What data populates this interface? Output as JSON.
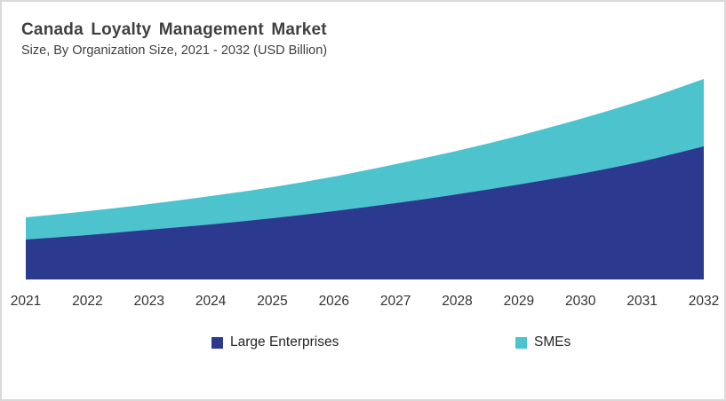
{
  "chart_data": {
    "type": "area",
    "stacked": true,
    "title": "Canada Loyalty Management Market",
    "subtitle": "Size, By Organization Size, 2021 - 2032 (USD Billion)",
    "x": [
      2021,
      2022,
      2023,
      2024,
      2025,
      2026,
      2027,
      2028,
      2029,
      2030,
      2031,
      2032
    ],
    "series": [
      {
        "name": "Large Enterprises",
        "color": "#2b3a8f",
        "values": [
          0.45,
          0.5,
          0.56,
          0.62,
          0.69,
          0.77,
          0.86,
          0.96,
          1.07,
          1.19,
          1.33,
          1.5
        ]
      },
      {
        "name": "SMEs",
        "color": "#4dc3cd",
        "values": [
          0.25,
          0.27,
          0.29,
          0.32,
          0.35,
          0.39,
          0.44,
          0.49,
          0.55,
          0.62,
          0.69,
          0.76
        ]
      }
    ],
    "xlabel": "",
    "ylabel": "",
    "ylim": [
      0,
      2.43
    ],
    "grid": false,
    "y_axis_shown": false,
    "legend_position": "bottom"
  },
  "style": {
    "background": "#ffffff",
    "border_color": "#d9d9d9",
    "title_color": "#404040",
    "subtitle_color": "#404040",
    "tick_color": "#333333",
    "legend_text_color": "#262626"
  }
}
